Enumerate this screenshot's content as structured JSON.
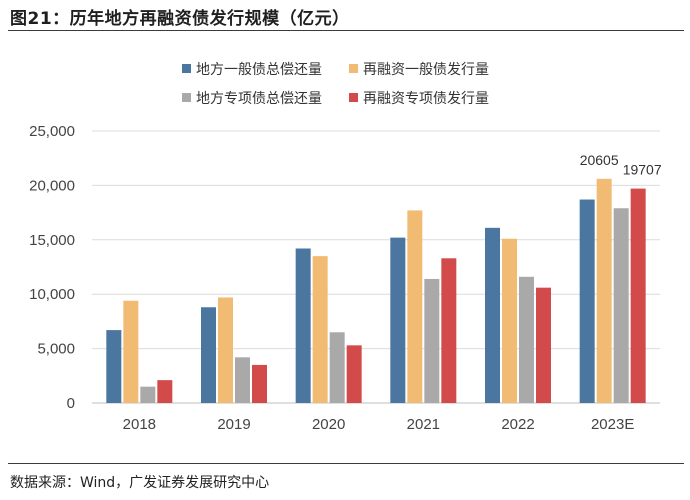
{
  "header": {
    "title": "图21：历年地方再融资债发行规模（亿元）"
  },
  "footer": {
    "source_label": "数据来源：",
    "source_text": "Wind，广发证券发展研究中心"
  },
  "chart_data": {
    "type": "bar",
    "title": "历年地方再融资债发行规模（亿元）",
    "xlabel": "",
    "ylabel": "",
    "ylim": [
      0,
      25000
    ],
    "yticks": [
      0,
      5000,
      10000,
      15000,
      20000,
      25000
    ],
    "ytick_labels": [
      "0",
      "5,000",
      "10,000",
      "15,000",
      "20,000",
      "25,000"
    ],
    "grid": true,
    "legend_position": "top",
    "categories": [
      "2018",
      "2019",
      "2020",
      "2021",
      "2022",
      "2023E"
    ],
    "series": [
      {
        "name": "地方一般债总偿还量",
        "color": "#4a76a0",
        "values": [
          6700,
          8800,
          14200,
          15200,
          16100,
          18700
        ]
      },
      {
        "name": "再融资一般债发行量",
        "color": "#f2bb73",
        "values": [
          9400,
          9700,
          13500,
          17700,
          15100,
          20605
        ]
      },
      {
        "name": "地方专项债总偿还量",
        "color": "#a9a9a9",
        "values": [
          1500,
          4200,
          6500,
          11400,
          11600,
          17900
        ]
      },
      {
        "name": "再融资专项债发行量",
        "color": "#d24a4a",
        "values": [
          2100,
          3500,
          5300,
          13300,
          10600,
          19707
        ]
      }
    ],
    "annotations": [
      {
        "category": "2023E",
        "series": 1,
        "text": "20605"
      },
      {
        "category": "2023E",
        "series": 3,
        "text": "19707"
      }
    ]
  }
}
